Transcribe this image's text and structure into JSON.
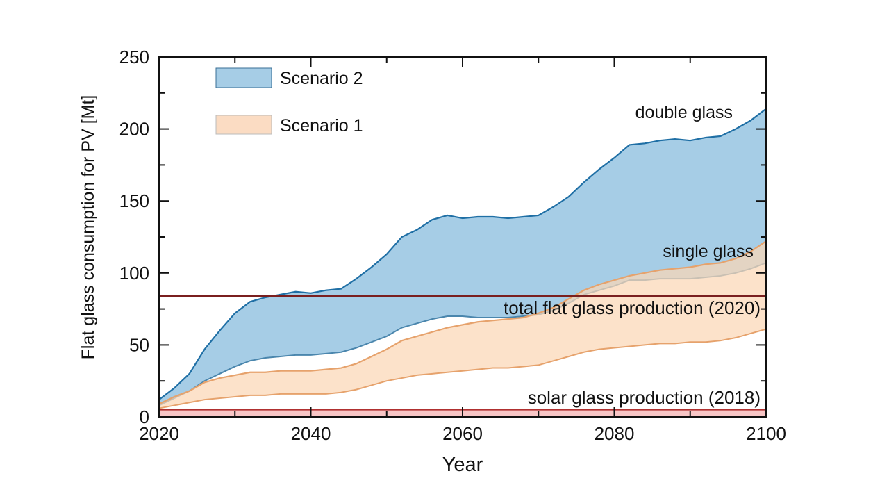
{
  "chart_data": {
    "type": "area",
    "title": "",
    "xlabel": "Year",
    "ylabel": "Flat glass consumption for PV  [Mt]",
    "xlim": [
      2020,
      2100
    ],
    "ylim": [
      0,
      250
    ],
    "xticks": [
      2020,
      2040,
      2060,
      2080,
      2100
    ],
    "yticks": [
      0,
      50,
      100,
      150,
      200,
      250
    ],
    "grid": false,
    "legend_position": "top-left",
    "x": [
      2020,
      2022,
      2024,
      2026,
      2028,
      2030,
      2032,
      2034,
      2036,
      2038,
      2040,
      2042,
      2044,
      2046,
      2048,
      2050,
      2052,
      2054,
      2056,
      2058,
      2060,
      2062,
      2064,
      2066,
      2068,
      2070,
      2072,
      2074,
      2076,
      2078,
      2080,
      2082,
      2084,
      2086,
      2088,
      2090,
      2092,
      2094,
      2096,
      2098,
      2100
    ],
    "series": [
      {
        "name": "Scenario 2",
        "fill": "#a6cde6",
        "stroke": "#1f6fa5",
        "upper": [
          12,
          20,
          30,
          47,
          60,
          72,
          80,
          83,
          85,
          87,
          86,
          88,
          89,
          96,
          104,
          113,
          125,
          130,
          137,
          140,
          138,
          139,
          139,
          138,
          139,
          140,
          146,
          153,
          163,
          172,
          180,
          189,
          190,
          192,
          193,
          192,
          194,
          195,
          200,
          206,
          214
        ],
        "lower": [
          8,
          13,
          18,
          25,
          30,
          35,
          39,
          41,
          42,
          43,
          43,
          44,
          45,
          48,
          52,
          56,
          62,
          65,
          68,
          70,
          70,
          69,
          69,
          69,
          70,
          71,
          74,
          79,
          85,
          88,
          91,
          95,
          95,
          96,
          96,
          96,
          97,
          98,
          100,
          103,
          107
        ]
      },
      {
        "name": "Scenario 1",
        "fill": "#fbd7b6",
        "stroke": "#e6a26c",
        "upper": [
          9,
          14,
          18,
          24,
          27,
          29,
          31,
          31,
          32,
          32,
          32,
          33,
          34,
          37,
          42,
          47,
          53,
          56,
          59,
          62,
          64,
          66,
          67,
          68,
          69,
          72,
          76,
          82,
          88,
          92,
          95,
          98,
          100,
          102,
          103,
          104,
          106,
          107,
          110,
          115,
          122
        ],
        "lower": [
          6,
          8,
          10,
          12,
          13,
          14,
          15,
          15,
          16,
          16,
          16,
          16,
          17,
          19,
          22,
          25,
          27,
          29,
          30,
          31,
          32,
          33,
          34,
          34,
          35,
          36,
          39,
          42,
          45,
          47,
          48,
          49,
          50,
          51,
          51,
          52,
          52,
          53,
          55,
          58,
          61
        ]
      }
    ],
    "reference_lines": [
      {
        "label": "total flat glass production (2020)",
        "value": 84,
        "color": "#7a1f1f"
      },
      {
        "label": "solar glass production (2018)",
        "value": 5,
        "color": "#b03030",
        "band_fill": "#f8c6c6"
      }
    ],
    "annotations": [
      {
        "text": "double glass",
        "x": 2090,
        "y": 212
      },
      {
        "text": "single glass",
        "x": 2092,
        "y": 114
      }
    ]
  }
}
